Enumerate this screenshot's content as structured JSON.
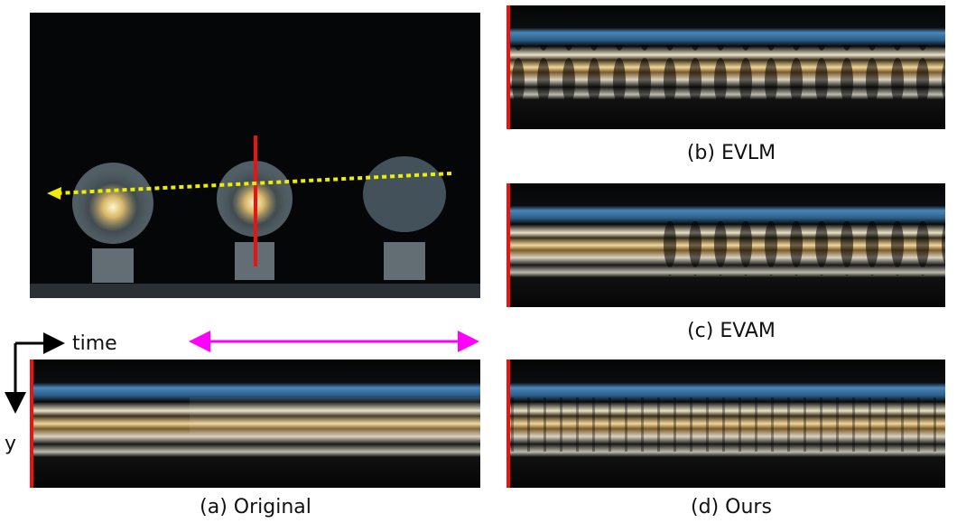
{
  "axis_labels": {
    "time": "time",
    "y": "y"
  },
  "captions": {
    "a": "(a) Original",
    "b": "(b) EVLM",
    "c": "(c) EVAM",
    "d": "(d) Ours"
  }
}
